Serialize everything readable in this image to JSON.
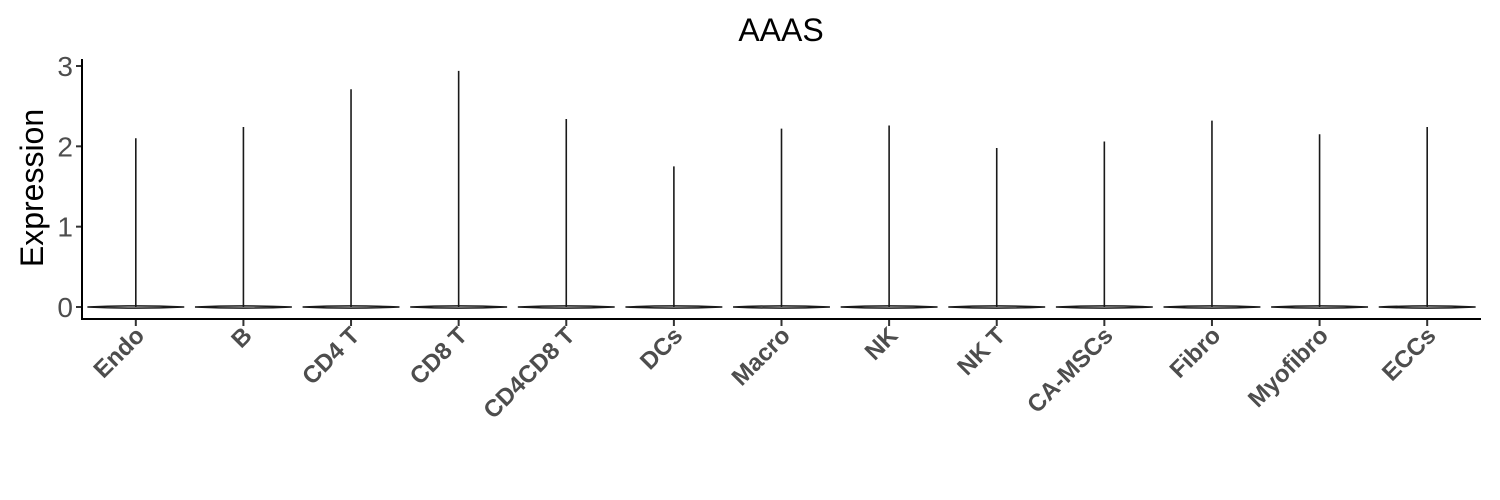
{
  "chart_data": {
    "type": "violin",
    "title": "AAAS",
    "xlabel": "",
    "ylabel": "Expression",
    "ylim": [
      -0.15,
      3.1
    ],
    "yticks": [
      0,
      1,
      2,
      3
    ],
    "grid": false,
    "categories": [
      "Endo",
      "B",
      "CD4 T",
      "CD8 T",
      "CD4CD8 T",
      "DCs",
      "Macro",
      "NK",
      "NK T",
      "CA-MSCs",
      "Fibro",
      "Myofibro",
      "ECCs"
    ],
    "series": [
      {
        "max_values": [
          2.1,
          2.24,
          2.71,
          2.94,
          2.34,
          1.75,
          2.22,
          2.26,
          1.98,
          2.06,
          2.32,
          2.15,
          2.24
        ],
        "min_values": [
          0,
          0,
          0,
          0,
          0,
          0,
          0,
          0,
          0,
          0,
          0,
          0,
          0
        ]
      }
    ],
    "colors": {
      "violin": "#1a1a1a",
      "axis": "#000000",
      "tick_text": "#4d4d4d"
    }
  }
}
